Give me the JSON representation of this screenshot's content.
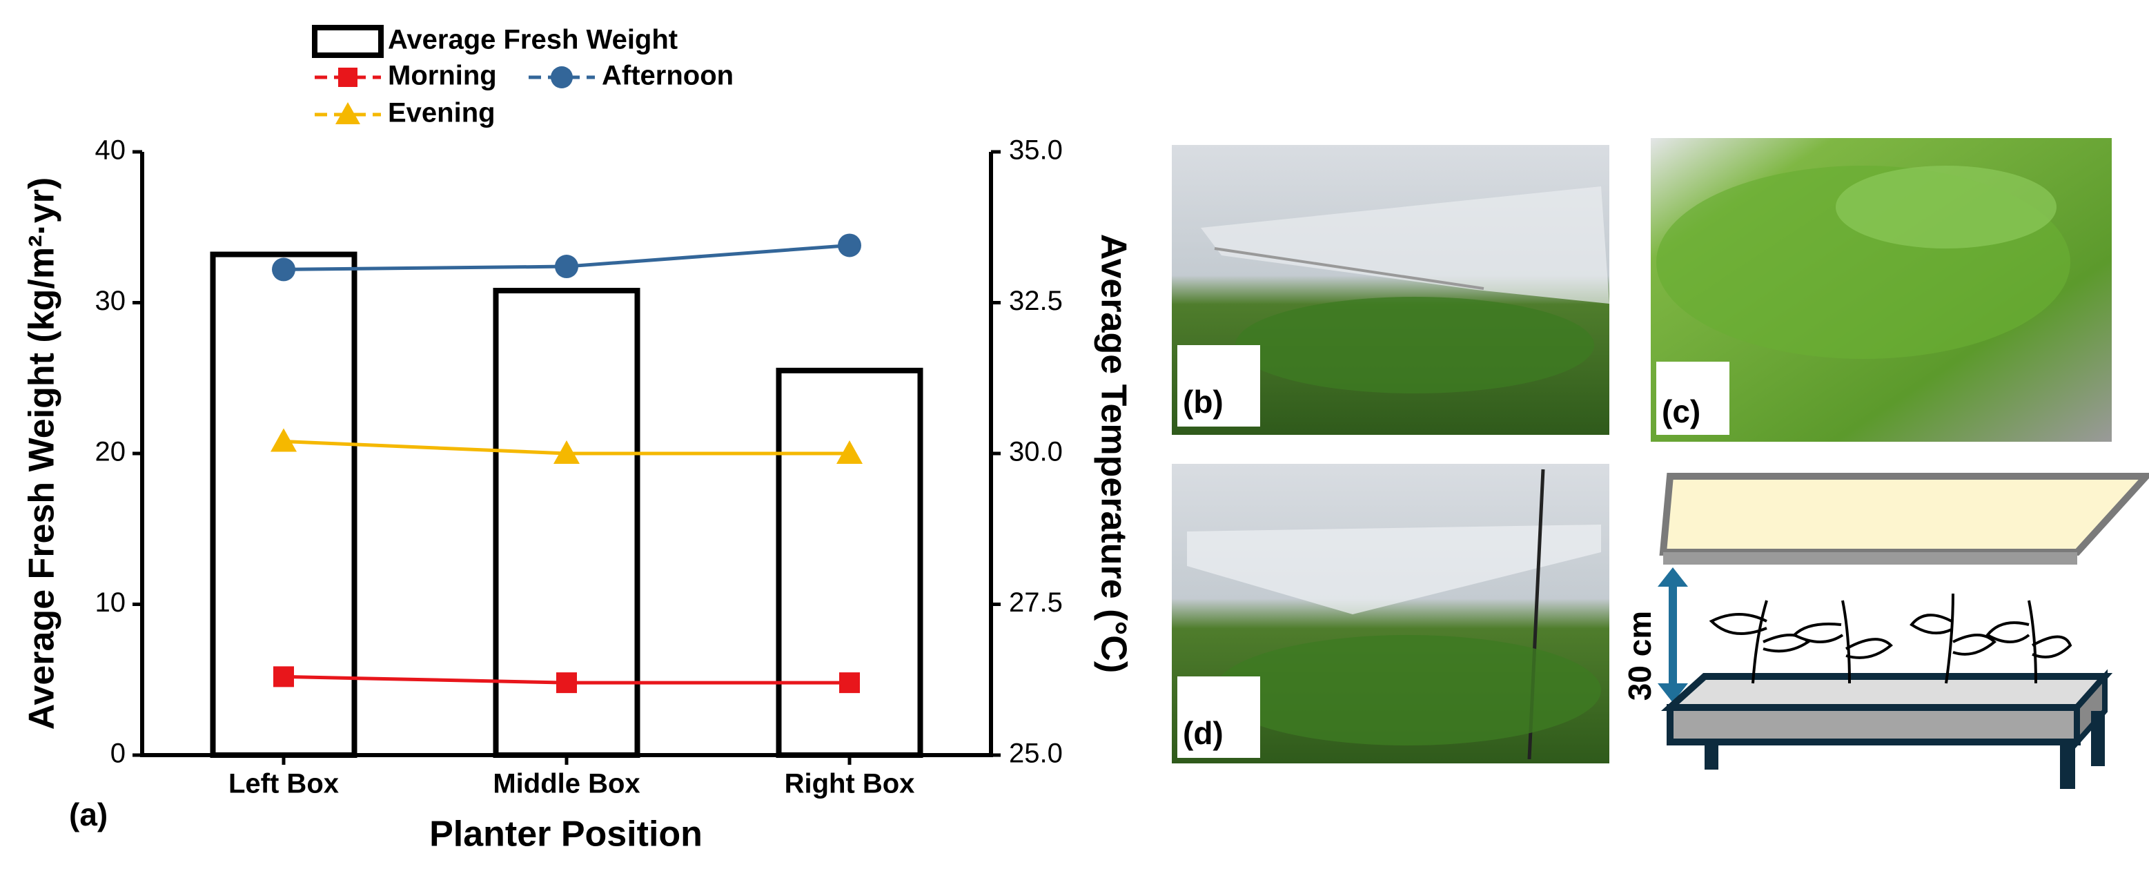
{
  "chart_data": {
    "type": "bar",
    "xlabel": "Planter Position",
    "ylabel": "Average Fresh Weight (kg/m²·yr)",
    "y2label": "Average Temperature (°C)",
    "panel_label": "(a)",
    "categories": [
      "Left Box",
      "Middle Box",
      "Right Box"
    ],
    "series": [
      {
        "name": "Average Fresh Weight",
        "type": "bar",
        "color": "#000000",
        "axis": "y",
        "values": [
          33.2,
          30.8,
          25.5
        ]
      },
      {
        "name": "Morning",
        "type": "line",
        "marker": "square",
        "color": "#e8161b",
        "axis": "y2",
        "values": [
          26.3,
          26.2,
          26.2
        ]
      },
      {
        "name": "Afternoon",
        "type": "line",
        "marker": "circle",
        "color": "#336699",
        "axis": "y2",
        "values": [
          33.05,
          33.1,
          33.45
        ]
      },
      {
        "name": "Evening",
        "type": "line",
        "marker": "triangle",
        "color": "#f5b800",
        "axis": "y2",
        "values": [
          30.2,
          30.0,
          30.0
        ]
      }
    ],
    "ylim": [
      0,
      40
    ],
    "yticks": [
      0,
      10,
      20,
      30,
      40
    ],
    "y2lim": [
      25,
      35
    ],
    "y2ticks": [
      {
        "value": 25,
        "label": "25.0"
      },
      27.5,
      {
        "value": 30,
        "label": "30.0"
      },
      32.5,
      {
        "value": 35,
        "label": "35.0"
      }
    ]
  },
  "photos": {
    "labels": [
      "(b)",
      "(c)",
      "(d)"
    ]
  },
  "diagram": {
    "height_label": "30 cm"
  }
}
